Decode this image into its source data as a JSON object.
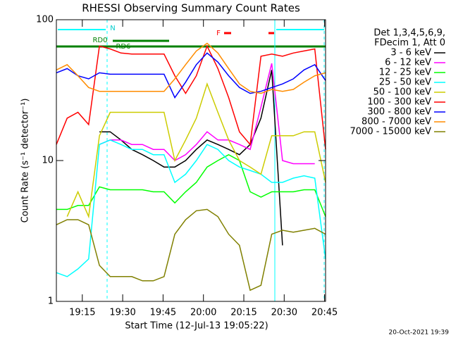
{
  "chart_data": {
    "type": "line",
    "title": "RHESSI Observing Summary Count Rates",
    "xlabel": "Start Time (12-Jul-13 19:05:22)",
    "ylabel": "Count Rate (s⁻¹ detector⁻¹)",
    "footer": "20-Oct-2021 19:39",
    "legend_header": [
      "Det 1,3,4,5,6,9,",
      "FDecim 1, Att 0"
    ],
    "annotations": [
      "RD0",
      "RD6",
      "N",
      "F"
    ],
    "log_y": true,
    "xlim": [
      0,
      100
    ],
    "xticks": [
      {
        "value": 9.633,
        "label": "19:15"
      },
      {
        "value": 24.633,
        "label": "19:30"
      },
      {
        "value": 39.633,
        "label": "19:45"
      },
      {
        "value": 54.633,
        "label": "20:00"
      },
      {
        "value": 69.633,
        "label": "20:15"
      },
      {
        "value": 84.633,
        "label": "20:30"
      },
      {
        "value": 99.633,
        "label": "20:45"
      }
    ],
    "ylim": [
      1,
      100
    ],
    "yticks": [
      1,
      10,
      100
    ],
    "x": [
      0,
      4,
      8,
      12,
      16,
      20,
      24,
      28,
      32,
      36,
      40,
      44,
      48,
      52,
      56,
      60,
      64,
      68,
      72,
      76,
      80,
      84,
      88,
      92,
      96,
      100
    ],
    "series": [
      {
        "name": "3 - 6 keV",
        "color": "#000000",
        "values": [
          null,
          null,
          null,
          null,
          16,
          16,
          14,
          12,
          11,
          10,
          9,
          9,
          10,
          12,
          14,
          13,
          12,
          11,
          13,
          20,
          44,
          2.5,
          null,
          null,
          null,
          null
        ]
      },
      {
        "name": "6 - 12 keV",
        "color": "#ff00ff",
        "values": [
          null,
          null,
          null,
          null,
          13,
          14,
          14,
          13,
          13,
          12,
          12,
          10,
          11,
          13,
          16,
          14,
          14,
          13,
          12,
          24,
          49,
          10,
          9.5,
          9.5,
          9.5,
          null
        ]
      },
      {
        "name": "12 - 25 keV",
        "color": "#00ff00",
        "values": [
          4.5,
          4.5,
          4.8,
          4.8,
          6.5,
          6.2,
          6.2,
          6.2,
          6.2,
          6,
          6,
          5,
          6,
          7,
          9,
          10,
          11,
          10,
          6,
          5.5,
          6,
          6,
          6,
          6.2,
          6.2,
          4
        ]
      },
      {
        "name": "25 - 50 keV",
        "color": "#00ffff",
        "values": [
          1.6,
          1.5,
          1.7,
          2,
          13,
          14,
          13,
          12,
          12,
          11,
          11,
          7,
          8,
          10,
          13,
          12,
          10,
          9,
          8.5,
          8,
          7,
          7,
          7.5,
          7.8,
          7.5,
          2
        ]
      },
      {
        "name": "50 - 100 keV",
        "color": "#cccc00",
        "values": [
          null,
          4,
          6,
          4,
          15,
          22,
          22,
          22,
          22,
          22,
          22,
          10,
          14,
          20,
          35,
          22,
          14,
          10,
          9,
          8,
          15,
          15,
          15,
          16,
          16,
          7
        ]
      },
      {
        "name": "100 - 300 keV",
        "color": "#ff0000",
        "values": [
          13,
          20,
          22,
          18,
          65,
          62,
          58,
          57,
          57,
          57,
          57,
          40,
          30,
          40,
          65,
          45,
          28,
          16,
          13,
          55,
          57,
          55,
          58,
          60,
          62,
          12
        ]
      },
      {
        "name": "300 - 800 keV",
        "color": "#0000ff",
        "values": [
          42,
          45,
          40,
          38,
          42,
          41,
          41,
          41,
          41,
          41,
          41,
          28,
          36,
          48,
          58,
          50,
          40,
          33,
          30,
          31,
          33,
          35,
          38,
          44,
          48,
          37
        ]
      },
      {
        "name": "800 - 7000 keV",
        "color": "#ff8c00",
        "values": [
          44,
          48,
          40,
          33,
          31,
          31,
          31,
          31,
          31,
          31,
          31,
          38,
          48,
          60,
          68,
          58,
          45,
          35,
          31,
          30,
          32,
          31,
          32,
          36,
          40,
          42
        ]
      },
      {
        "name": "7000 - 15000 keV",
        "color": "#808000",
        "values": [
          3.5,
          3.8,
          3.8,
          3.5,
          1.8,
          1.5,
          1.5,
          1.5,
          1.4,
          1.4,
          1.5,
          3,
          3.8,
          4.4,
          4.5,
          4,
          3,
          2.5,
          1.2,
          1.3,
          3,
          3.2,
          3.1,
          3.2,
          3.3,
          3
        ]
      }
    ]
  }
}
